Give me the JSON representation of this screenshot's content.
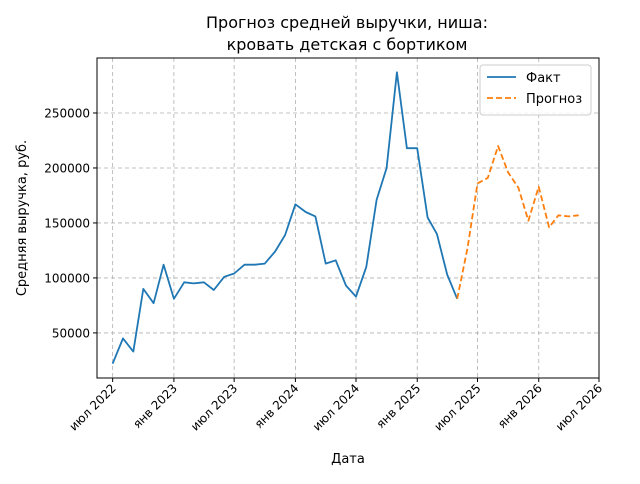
{
  "chart_data": {
    "type": "line",
    "title_line1": "Прогноз средней выручки, ниша:",
    "title_line2": "кровать детская с бортиком",
    "xlabel": "Дата",
    "ylabel": "Средняя выручка, руб.",
    "grid": true,
    "legend_position": "top-right",
    "x_range": [
      "2022-05-15",
      "2026-07-01"
    ],
    "ylim": [
      9000,
      300000
    ],
    "x_ticks": [
      {
        "date": "2022-07-01",
        "label": "июл 2022"
      },
      {
        "date": "2023-01-01",
        "label": "янв 2023"
      },
      {
        "date": "2023-07-01",
        "label": "июл 2023"
      },
      {
        "date": "2024-01-01",
        "label": "янв 2024"
      },
      {
        "date": "2024-07-01",
        "label": "июл 2024"
      },
      {
        "date": "2025-01-01",
        "label": "янв 2025"
      },
      {
        "date": "2025-07-01",
        "label": "июл 2025"
      },
      {
        "date": "2026-01-01",
        "label": "янв 2026"
      },
      {
        "date": "2026-07-01",
        "label": "июл 2026"
      }
    ],
    "y_ticks": [
      {
        "value": 50000,
        "label": "50000"
      },
      {
        "value": 100000,
        "label": "100000"
      },
      {
        "value": 150000,
        "label": "150000"
      },
      {
        "value": 200000,
        "label": "200000"
      },
      {
        "value": 250000,
        "label": "250000"
      }
    ],
    "series": [
      {
        "name": "Факт",
        "color": "#1f77b4",
        "style": "solid",
        "points": [
          [
            "2022-07-01",
            22000
          ],
          [
            "2022-08-01",
            45000
          ],
          [
            "2022-09-01",
            33000
          ],
          [
            "2022-10-01",
            90000
          ],
          [
            "2022-11-01",
            77000
          ],
          [
            "2022-12-01",
            112000
          ],
          [
            "2023-01-01",
            81000
          ],
          [
            "2023-02-01",
            96000
          ],
          [
            "2023-03-01",
            95000
          ],
          [
            "2023-04-01",
            96000
          ],
          [
            "2023-05-01",
            89000
          ],
          [
            "2023-06-01",
            101000
          ],
          [
            "2023-07-01",
            104000
          ],
          [
            "2023-08-01",
            112000
          ],
          [
            "2023-09-01",
            112000
          ],
          [
            "2023-10-01",
            113000
          ],
          [
            "2023-11-01",
            124000
          ],
          [
            "2023-12-01",
            139000
          ],
          [
            "2024-01-01",
            167000
          ],
          [
            "2024-02-01",
            160000
          ],
          [
            "2024-03-01",
            156000
          ],
          [
            "2024-04-01",
            113000
          ],
          [
            "2024-05-01",
            116000
          ],
          [
            "2024-06-01",
            93000
          ],
          [
            "2024-07-01",
            83000
          ],
          [
            "2024-08-01",
            110000
          ],
          [
            "2024-09-01",
            171000
          ],
          [
            "2024-10-01",
            200000
          ],
          [
            "2024-11-01",
            287000
          ],
          [
            "2024-12-01",
            218000
          ],
          [
            "2025-01-01",
            218000
          ],
          [
            "2025-02-01",
            155000
          ],
          [
            "2025-03-01",
            140000
          ],
          [
            "2025-04-01",
            103000
          ],
          [
            "2025-05-01",
            81000
          ]
        ]
      },
      {
        "name": "Прогноз",
        "color": "#ff7f0e",
        "style": "dashed",
        "points": [
          [
            "2025-05-01",
            81000
          ],
          [
            "2025-06-01",
            127000
          ],
          [
            "2025-07-01",
            186000
          ],
          [
            "2025-08-01",
            191000
          ],
          [
            "2025-09-01",
            220000
          ],
          [
            "2025-10-01",
            196000
          ],
          [
            "2025-11-01",
            182000
          ],
          [
            "2025-12-01",
            152000
          ],
          [
            "2026-01-01",
            183000
          ],
          [
            "2026-02-01",
            146000
          ],
          [
            "2026-03-01",
            157000
          ],
          [
            "2026-04-01",
            156000
          ],
          [
            "2026-05-01",
            157000
          ]
        ]
      }
    ]
  }
}
